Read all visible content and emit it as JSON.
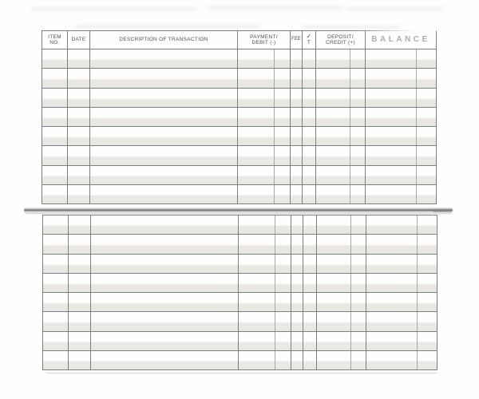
{
  "colors": {
    "paper": "#fefefd",
    "grid_line": "#7e7e7e",
    "cents_divider": "#a8a8a8",
    "stripe": "#e9e8e4",
    "header_text": "#4f4f4f",
    "balance_text": "#adadad",
    "smudge": "#d9d9d9"
  },
  "register": {
    "header": {
      "item_no": [
        "ITEM",
        "NO."
      ],
      "date": "DATE",
      "description": "DESCRIPTION OF TRANSACTION",
      "payment_debit": [
        "PAYMENT/",
        "DEBIT (-)"
      ],
      "fee": "FEE",
      "check_t": [
        "✓",
        "T"
      ],
      "deposit_credit": [
        "DEPOSIT/",
        "CREDIT (+)"
      ],
      "balance": "BALANCE"
    },
    "sections": [
      {
        "name": "top",
        "rows": [
          [
            "",
            "",
            "",
            "",
            "",
            "",
            "",
            ""
          ],
          [
            "",
            "",
            "",
            "",
            "",
            "",
            "",
            ""
          ],
          [
            "",
            "",
            "",
            "",
            "",
            "",
            "",
            ""
          ],
          [
            "",
            "",
            "",
            "",
            "",
            "",
            "",
            ""
          ],
          [
            "",
            "",
            "",
            "",
            "",
            "",
            "",
            ""
          ],
          [
            "",
            "",
            "",
            "",
            "",
            "",
            "",
            ""
          ],
          [
            "",
            "",
            "",
            "",
            "",
            "",
            "",
            ""
          ],
          [
            "",
            "",
            "",
            "",
            "",
            "",
            "",
            ""
          ]
        ]
      },
      {
        "name": "bottom",
        "rows": [
          [
            "",
            "",
            "",
            "",
            "",
            "",
            "",
            ""
          ],
          [
            "",
            "",
            "",
            "",
            "",
            "",
            "",
            ""
          ],
          [
            "",
            "",
            "",
            "",
            "",
            "",
            "",
            ""
          ],
          [
            "",
            "",
            "",
            "",
            "",
            "",
            "",
            ""
          ],
          [
            "",
            "",
            "",
            "",
            "",
            "",
            "",
            ""
          ],
          [
            "",
            "",
            "",
            "",
            "",
            "",
            "",
            ""
          ],
          [
            "",
            "",
            "",
            "",
            "",
            "",
            "",
            ""
          ],
          [
            "",
            "",
            "",
            "",
            "",
            "",
            "",
            ""
          ]
        ]
      }
    ]
  }
}
